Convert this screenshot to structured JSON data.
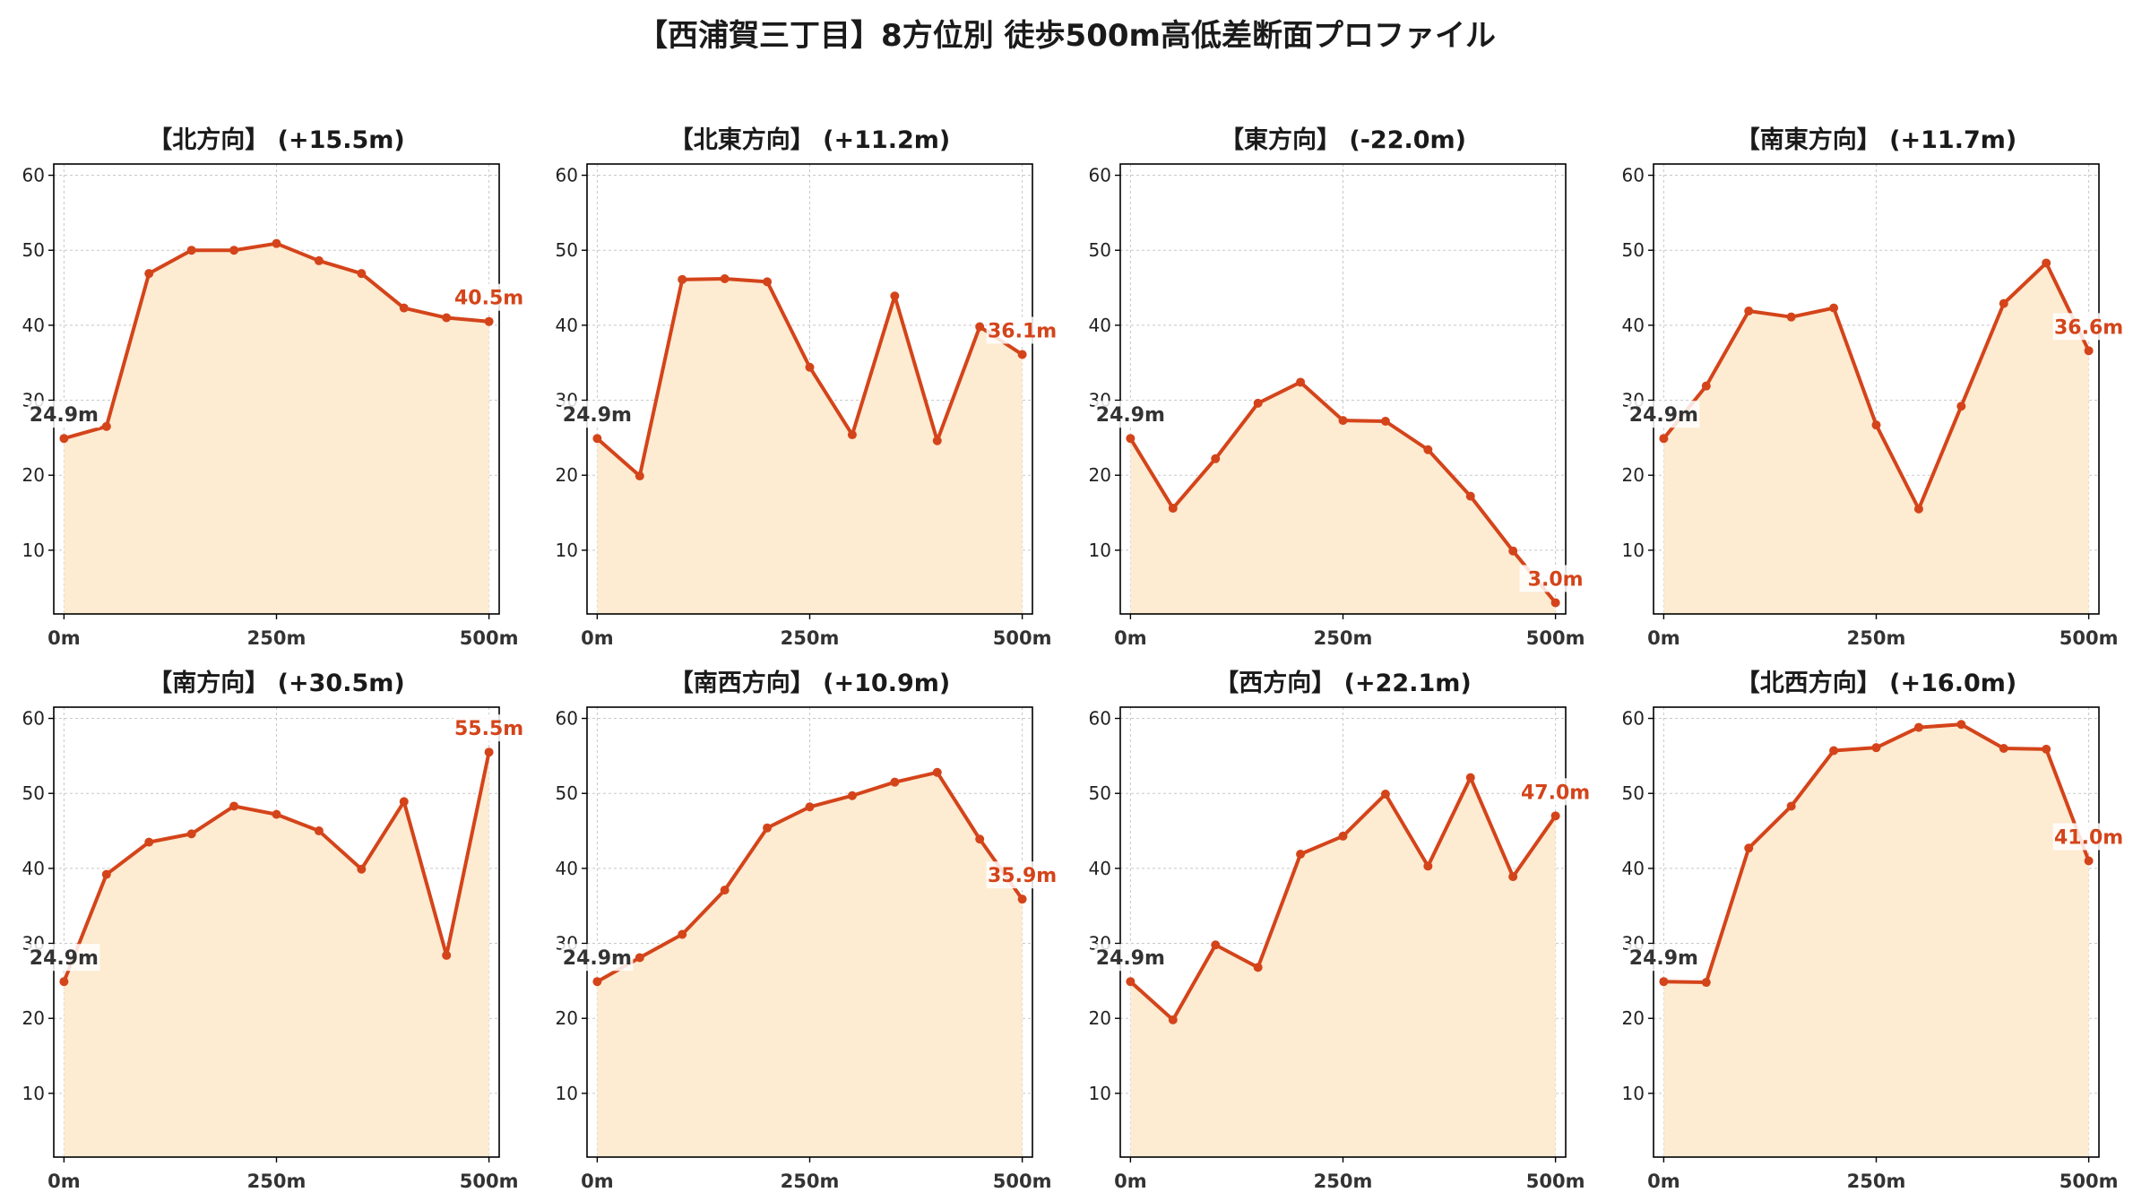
{
  "title": "【西浦賀三丁目】8方位別 徒歩500m高低差断面プロファイル",
  "colors": {
    "line": "#d4441a",
    "fill": "#fdebd2",
    "start_label": "#333333",
    "end_label": "#d4441a",
    "grid": "#c8c8c8",
    "axes": "#000000"
  },
  "chart_data": [
    {
      "type": "area",
      "title": "【北方向】 (+15.5m)",
      "x": [
        0,
        50,
        100,
        150,
        200,
        250,
        300,
        350,
        400,
        450,
        500
      ],
      "values": [
        24.9,
        26.5,
        46.9,
        50.0,
        50.0,
        50.9,
        48.6,
        46.9,
        42.3,
        41.0,
        40.5
      ],
      "start_label": "24.9m",
      "end_label": "40.5m",
      "xticks": [
        "0m",
        "250m",
        "500m"
      ],
      "yticks": [
        10,
        20,
        30,
        40,
        50,
        60
      ],
      "xlim": [
        -12,
        512
      ],
      "ylim": [
        1.5,
        61.5
      ],
      "grid": true
    },
    {
      "type": "area",
      "title": "【北東方向】 (+11.2m)",
      "x": [
        0,
        50,
        100,
        150,
        200,
        250,
        300,
        350,
        400,
        450,
        500
      ],
      "values": [
        24.9,
        19.9,
        46.1,
        46.2,
        45.8,
        34.4,
        25.4,
        43.9,
        24.6,
        39.8,
        36.1
      ],
      "start_label": "24.9m",
      "end_label": "36.1m",
      "xticks": [
        "0m",
        "250m",
        "500m"
      ],
      "yticks": [
        10,
        20,
        30,
        40,
        50,
        60
      ],
      "xlim": [
        -12,
        512
      ],
      "ylim": [
        1.5,
        61.5
      ],
      "grid": true
    },
    {
      "type": "area",
      "title": "【東方向】 (-22.0m)",
      "x": [
        0,
        50,
        100,
        150,
        200,
        250,
        300,
        350,
        400,
        450,
        500
      ],
      "values": [
        24.9,
        15.6,
        22.2,
        29.6,
        32.4,
        27.3,
        27.2,
        23.4,
        17.2,
        9.9,
        3.0
      ],
      "start_label": "24.9m",
      "end_label": "3.0m",
      "xticks": [
        "0m",
        "250m",
        "500m"
      ],
      "yticks": [
        10,
        20,
        30,
        40,
        50,
        60
      ],
      "xlim": [
        -12,
        512
      ],
      "ylim": [
        1.5,
        61.5
      ],
      "grid": true
    },
    {
      "type": "area",
      "title": "【南東方向】 (+11.7m)",
      "x": [
        0,
        50,
        100,
        150,
        200,
        250,
        300,
        350,
        400,
        450,
        500
      ],
      "values": [
        24.9,
        31.9,
        41.9,
        41.1,
        42.3,
        26.7,
        15.5,
        29.2,
        42.9,
        48.3,
        36.6
      ],
      "start_label": "24.9m",
      "end_label": "36.6m",
      "xticks": [
        "0m",
        "250m",
        "500m"
      ],
      "yticks": [
        10,
        20,
        30,
        40,
        50,
        60
      ],
      "xlim": [
        -12,
        512
      ],
      "ylim": [
        1.5,
        61.5
      ],
      "grid": true
    },
    {
      "type": "area",
      "title": "【南方向】 (+30.5m)",
      "x": [
        0,
        50,
        100,
        150,
        200,
        250,
        300,
        350,
        400,
        450,
        500
      ],
      "values": [
        24.9,
        39.2,
        43.5,
        44.6,
        48.3,
        47.2,
        45.0,
        39.9,
        48.9,
        28.4,
        55.5
      ],
      "start_label": "24.9m",
      "end_label": "55.5m",
      "xticks": [
        "0m",
        "250m",
        "500m"
      ],
      "yticks": [
        10,
        20,
        30,
        40,
        50,
        60
      ],
      "xlim": [
        -12,
        512
      ],
      "ylim": [
        1.5,
        61.5
      ],
      "grid": true
    },
    {
      "type": "area",
      "title": "【南西方向】 (+10.9m)",
      "x": [
        0,
        50,
        100,
        150,
        200,
        250,
        300,
        350,
        400,
        450,
        500
      ],
      "values": [
        24.9,
        28.1,
        31.2,
        37.1,
        45.4,
        48.2,
        49.7,
        51.5,
        52.8,
        43.9,
        35.9
      ],
      "start_label": "24.9m",
      "end_label": "35.9m",
      "xticks": [
        "0m",
        "250m",
        "500m"
      ],
      "yticks": [
        10,
        20,
        30,
        40,
        50,
        60
      ],
      "xlim": [
        -12,
        512
      ],
      "ylim": [
        1.5,
        61.5
      ],
      "grid": true
    },
    {
      "type": "area",
      "title": "【西方向】 (+22.1m)",
      "x": [
        0,
        50,
        100,
        150,
        200,
        250,
        300,
        350,
        400,
        450,
        500
      ],
      "values": [
        24.9,
        19.8,
        29.8,
        26.8,
        41.9,
        44.3,
        49.9,
        40.3,
        52.1,
        38.9,
        47.0
      ],
      "start_label": "24.9m",
      "end_label": "47.0m",
      "xticks": [
        "0m",
        "250m",
        "500m"
      ],
      "yticks": [
        10,
        20,
        30,
        40,
        50,
        60
      ],
      "xlim": [
        -12,
        512
      ],
      "ylim": [
        1.5,
        61.5
      ],
      "grid": true
    },
    {
      "type": "area",
      "title": "【北西方向】 (+16.0m)",
      "x": [
        0,
        50,
        100,
        150,
        200,
        250,
        300,
        350,
        400,
        450,
        500
      ],
      "values": [
        24.9,
        24.8,
        42.7,
        48.3,
        55.7,
        56.1,
        58.8,
        59.2,
        56.0,
        55.9,
        41.0
      ],
      "start_label": "24.9m",
      "end_label": "41.0m",
      "xticks": [
        "0m",
        "250m",
        "500m"
      ],
      "yticks": [
        10,
        20,
        30,
        40,
        50,
        60
      ],
      "xlim": [
        -12,
        512
      ],
      "ylim": [
        1.5,
        61.5
      ],
      "grid": true
    }
  ]
}
